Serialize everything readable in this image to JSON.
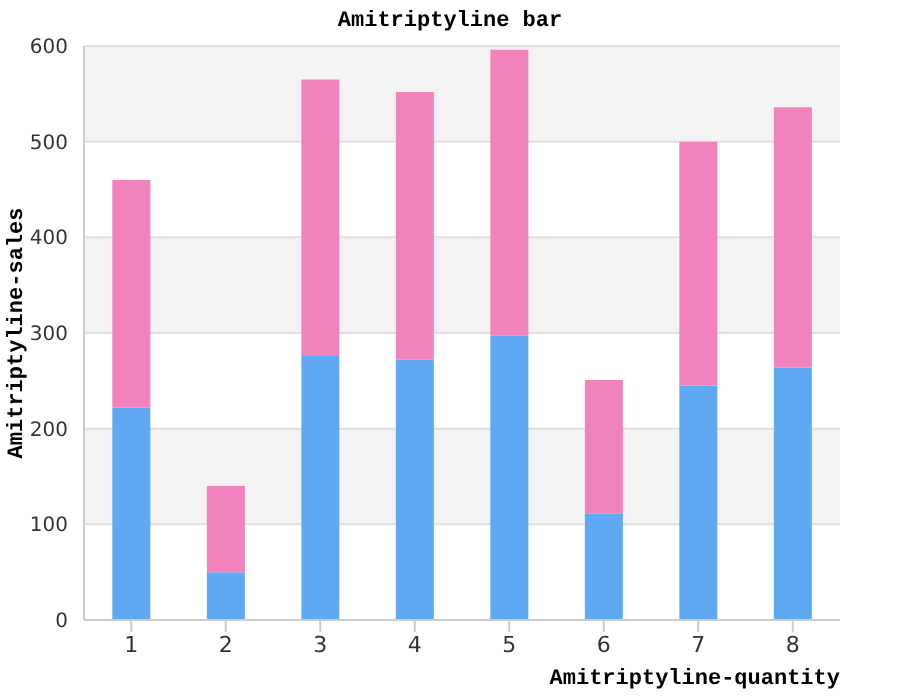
{
  "chart_data": {
    "type": "bar",
    "title": "Amitriptyline bar",
    "xlabel": "Amitriptyline-quantity",
    "ylabel": "Amitriptyline-sales",
    "categories": [
      "1",
      "2",
      "3",
      "4",
      "5",
      "6",
      "7",
      "8"
    ],
    "stacked": true,
    "series": [
      {
        "color": "#5ea9f2",
        "values": [
          222,
          50,
          276,
          272,
          297,
          111,
          245,
          264
        ]
      },
      {
        "color": "#f282bb",
        "values": [
          238,
          90,
          289,
          280,
          299,
          140,
          255,
          272
        ]
      }
    ],
    "ylim": [
      0,
      600
    ],
    "yticks": [
      0,
      100,
      200,
      300,
      400,
      500,
      600
    ],
    "grid": "y",
    "legend": false
  }
}
